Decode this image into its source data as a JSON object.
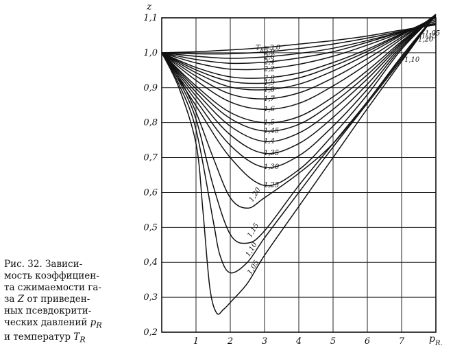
{
  "caption": {
    "line1": "Рис. 32. Зависи-",
    "line2": "мость коэффициен-",
    "line3a": "та сжимаемости га-",
    "line4a": "за ",
    "line4var": "Z",
    "line4b": " от приведен-",
    "line5": "ных псевдокрити-",
    "line6a": "ческих давлений ",
    "line6var": "p",
    "line6sub": "R",
    "line7a": "и температур ",
    "line7var": "T",
    "line7sub": "R"
  },
  "chart_data": {
    "type": "line",
    "title": "",
    "ylabel": "z",
    "xlabel": "p_R",
    "xlabel_main": "p",
    "xlabel_sub": "R.",
    "series_label_prefix": "T",
    "series_label_sub": "R",
    "series_label_eq": "=",
    "xlim": [
      0,
      8
    ],
    "ylim": [
      0.2,
      1.1
    ],
    "grid": true,
    "x_ticks": [
      {
        "value": 1,
        "label": "1"
      },
      {
        "value": 2,
        "label": "2"
      },
      {
        "value": 3,
        "label": "3"
      },
      {
        "value": 4,
        "label": "4"
      },
      {
        "value": 5,
        "label": "5"
      },
      {
        "value": 6,
        "label": "6"
      },
      {
        "value": 7,
        "label": "7"
      }
    ],
    "y_ticks": [
      {
        "value": 0.2,
        "label": "0,2"
      },
      {
        "value": 0.3,
        "label": "0,3"
      },
      {
        "value": 0.4,
        "label": "0,4"
      },
      {
        "value": 0.5,
        "label": "0,5"
      },
      {
        "value": 0.6,
        "label": "0,6"
      },
      {
        "value": 0.7,
        "label": "0,7"
      },
      {
        "value": 0.8,
        "label": "0,8"
      },
      {
        "value": 0.9,
        "label": "0,9"
      },
      {
        "value": 1.0,
        "label": "1,0"
      },
      {
        "value": 1.1,
        "label": "1,1"
      }
    ],
    "series": [
      {
        "name": "3,0",
        "x": [
          0,
          1,
          2,
          3,
          4,
          5,
          6,
          7,
          8
        ],
        "y": [
          1.0,
          1.003,
          1.008,
          1.015,
          1.025,
          1.035,
          1.048,
          1.065,
          1.08
        ]
      },
      {
        "name": "2,8",
        "x": [
          0,
          1,
          2,
          3,
          4,
          5,
          6,
          7,
          8
        ],
        "y": [
          1.0,
          0.997,
          0.997,
          1.002,
          1.012,
          1.025,
          1.042,
          1.062,
          1.082
        ]
      },
      {
        "name": "2,6",
        "x": [
          0,
          1,
          2,
          3,
          4,
          5,
          6,
          7,
          8
        ],
        "y": [
          1.0,
          0.99,
          0.984,
          0.988,
          0.998,
          1.013,
          1.035,
          1.06,
          1.085
        ]
      },
      {
        "name": "2,4",
        "x": [
          0,
          1,
          2,
          3,
          4,
          5,
          6,
          7,
          8
        ],
        "y": [
          1.0,
          0.981,
          0.97,
          0.973,
          0.985,
          1.003,
          1.03,
          1.06,
          1.09
        ]
      },
      {
        "name": "2,2",
        "x": [
          0,
          1,
          2,
          3,
          4,
          5,
          6,
          7,
          8
        ],
        "y": [
          1.0,
          0.971,
          0.953,
          0.954,
          0.967,
          0.99,
          1.022,
          1.058,
          1.095
        ]
      },
      {
        "name": "2,0",
        "x": [
          0,
          1,
          2,
          3,
          4,
          5,
          6,
          7,
          8
        ],
        "y": [
          1.0,
          0.958,
          0.931,
          0.928,
          0.942,
          0.972,
          1.01,
          1.055,
          1.1
        ]
      },
      {
        "name": "1,9",
        "x": [
          0,
          1,
          2,
          3,
          4,
          5,
          6,
          7,
          8
        ],
        "y": [
          1.0,
          0.951,
          0.918,
          0.913,
          0.928,
          0.962,
          1.004,
          1.053,
          1.102
        ]
      },
      {
        "name": "1,8",
        "x": [
          0,
          1,
          2,
          3,
          4,
          5,
          6,
          7,
          8
        ],
        "y": [
          1.0,
          0.943,
          0.902,
          0.894,
          0.91,
          0.948,
          0.996,
          1.05,
          1.104
        ]
      },
      {
        "name": "1,7",
        "x": [
          0,
          1,
          2,
          3,
          4,
          5,
          6,
          7,
          8
        ],
        "y": [
          1.0,
          0.933,
          0.882,
          0.868,
          0.885,
          0.928,
          0.983,
          1.045,
          1.106
        ]
      },
      {
        "name": "1,6",
        "x": [
          0,
          1,
          2,
          3,
          4,
          5,
          6,
          7,
          8
        ],
        "y": [
          1.0,
          0.921,
          0.859,
          0.838,
          0.855,
          0.905,
          0.968,
          1.04,
          1.108
        ]
      },
      {
        "name": "1,5",
        "x": [
          0,
          1,
          2,
          3,
          4,
          5,
          6,
          7,
          8
        ],
        "y": [
          1.0,
          0.905,
          0.829,
          0.8,
          0.817,
          0.874,
          0.949,
          1.033,
          1.11
        ]
      },
      {
        "name": "1,45",
        "x": [
          0,
          1,
          2,
          3,
          4,
          5,
          6,
          7,
          8
        ],
        "y": [
          1.0,
          0.897,
          0.812,
          0.776,
          0.795,
          0.857,
          0.937,
          1.029,
          1.11
        ]
      },
      {
        "name": "1,4",
        "x": [
          0,
          1,
          2,
          3,
          4,
          5,
          6,
          7,
          8
        ],
        "y": [
          1.0,
          0.887,
          0.79,
          0.746,
          0.77,
          0.838,
          0.925,
          1.025,
          1.11
        ]
      },
      {
        "name": "1,35",
        "x": [
          0,
          1,
          2,
          3,
          4,
          5,
          6,
          7,
          8
        ],
        "y": [
          1.0,
          0.876,
          0.765,
          0.712,
          0.74,
          0.815,
          0.91,
          1.02,
          1.11
        ]
      },
      {
        "name": "1,30",
        "x": [
          0,
          1,
          2,
          3,
          4,
          5,
          6,
          7,
          8
        ],
        "y": [
          1.0,
          0.863,
          0.735,
          0.672,
          0.705,
          0.79,
          0.895,
          1.015,
          1.11
        ]
      },
      {
        "name": "1,25",
        "x": [
          0,
          1,
          2,
          3,
          4,
          5,
          6,
          7,
          8
        ],
        "y": [
          1.0,
          0.848,
          0.7,
          0.62,
          0.665,
          0.765,
          0.88,
          1.01,
          1.11
        ]
      },
      {
        "name": "1,20",
        "x": [
          0,
          0.5,
          1,
          1.5,
          2,
          2.5,
          3,
          4,
          5,
          6,
          7,
          8
        ],
        "y": [
          1.0,
          0.93,
          0.83,
          0.7,
          0.585,
          0.555,
          0.585,
          0.655,
          0.74,
          0.86,
          0.99,
          1.11
        ]
      },
      {
        "name": "1,15",
        "x": [
          0,
          0.5,
          1,
          1.5,
          2,
          2.5,
          3,
          4,
          5,
          6,
          7,
          8
        ],
        "y": [
          1.0,
          0.92,
          0.81,
          0.62,
          0.48,
          0.455,
          0.49,
          0.62,
          0.74,
          0.86,
          0.985,
          1.11
        ]
      },
      {
        "name": "1,10",
        "x": [
          0,
          0.5,
          1,
          1.5,
          1.7,
          2,
          2.5,
          3,
          4,
          5,
          6,
          7,
          8
        ],
        "y": [
          1.0,
          0.91,
          0.78,
          0.52,
          0.42,
          0.37,
          0.4,
          0.47,
          0.6,
          0.73,
          0.855,
          0.98,
          1.11
        ]
      },
      {
        "name": "1,05",
        "x": [
          0,
          0.5,
          1,
          1.2,
          1.4,
          1.6,
          1.8,
          2,
          2.5,
          3,
          4,
          5,
          6,
          7,
          8
        ],
        "y": [
          1.0,
          0.9,
          0.74,
          0.55,
          0.33,
          0.255,
          0.265,
          0.285,
          0.34,
          0.42,
          0.56,
          0.7,
          0.84,
          0.975,
          1.11
        ]
      }
    ]
  }
}
